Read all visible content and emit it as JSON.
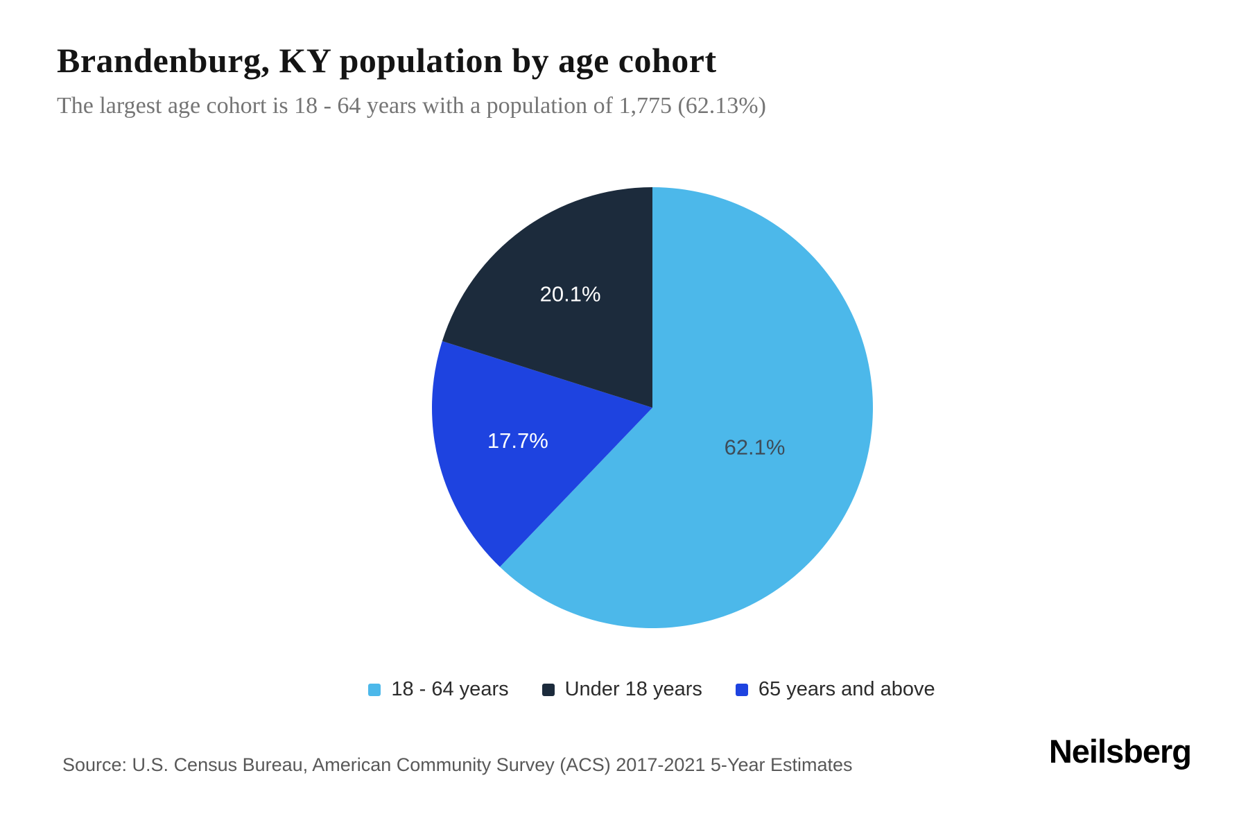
{
  "header": {
    "title": "Brandenburg, KY population by age cohort",
    "subtitle": "The largest age cohort is 18 - 64 years with a population of 1,775 (62.13%)"
  },
  "chart_data": {
    "type": "pie",
    "title": "Brandenburg, KY population by age cohort",
    "subtitle": "The largest age cohort is 18 - 64 years with a population of 1,775 (62.13%)",
    "start_angle_deg": 0,
    "direction": "clockwise",
    "slices": [
      {
        "label": "18 - 64 years",
        "value": 62.1,
        "display": "62.1%",
        "color": "#4CB8EA",
        "label_color": "#3E4C59"
      },
      {
        "label": "65 years and above",
        "value": 17.7,
        "display": "17.7%",
        "color": "#1E43E0",
        "label_color": "#FFFFFF"
      },
      {
        "label": "Under 18 years",
        "value": 20.1,
        "display": "20.1%",
        "color": "#1C2B3C",
        "label_color": "#FFFFFF"
      }
    ],
    "legend": [
      {
        "label": "18 - 64 years",
        "color": "#4CB8EA"
      },
      {
        "label": "Under 18 years",
        "color": "#1C2B3C"
      },
      {
        "label": "65 years and above",
        "color": "#1E43E0"
      }
    ],
    "legend_position": "bottom-center",
    "largest_cohort": {
      "label": "18 - 64 years",
      "population": "1,775",
      "percent": "62.13%"
    }
  },
  "footer": {
    "source": "Source: U.S. Census Bureau, American Community Survey (ACS) 2017-2021 5-Year Estimates",
    "logo": "Neilsberg"
  }
}
